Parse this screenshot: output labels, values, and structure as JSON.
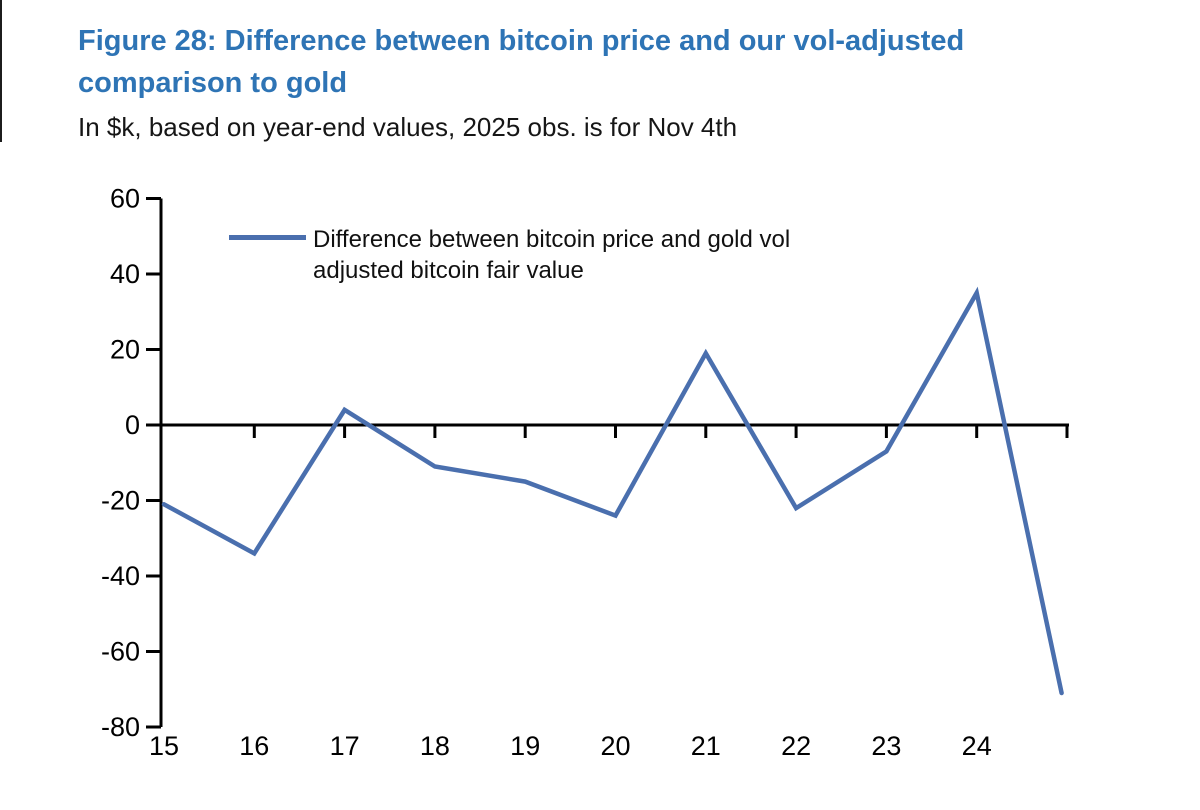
{
  "header": {
    "title_line1": "Figure 28: Difference between bitcoin price and our vol-adjusted",
    "title_line2": "comparison to gold",
    "title_color": "#2E74B5",
    "subtitle": "In $k, based on year-end values, 2025 obs. is for Nov 4th"
  },
  "legend": {
    "line_color": "#4a6fae",
    "label_line1": "Difference between bitcoin price and gold vol",
    "label_line2": "adjusted bitcoin fair value",
    "label_full": "Difference between bitcoin price and gold vol adjusted bitcoin fair value"
  },
  "chart_data": {
    "type": "line",
    "title": "Figure 28: Difference between bitcoin price and our vol-adjusted comparison to gold",
    "subtitle": "In $k, based on year-end values, 2025 obs. is for Nov 4th",
    "xlabel": "",
    "ylabel": "",
    "unit": "$k",
    "grid": false,
    "legend_position": "top-left-inside",
    "ylim": [
      -80,
      60
    ],
    "xlim": [
      15,
      25
    ],
    "y_ticks": [
      60,
      40,
      20,
      0,
      -20,
      -40,
      -60,
      -80
    ],
    "x_tick_labels": [
      "15",
      "16",
      "17",
      "18",
      "19",
      "20",
      "21",
      "22",
      "23",
      "24"
    ],
    "x_tick_label_positions": [
      15,
      16,
      17,
      18,
      19,
      20,
      21,
      22,
      23,
      24
    ],
    "x_tick_marks": [
      16,
      17,
      18,
      19,
      20,
      21,
      22,
      23,
      24,
      25
    ],
    "axis_color": "#000000",
    "series": [
      {
        "name": "Difference between bitcoin price and gold vol adjusted bitcoin fair value",
        "color": "#4a6fae",
        "points": [
          {
            "x": 15,
            "year": "2015",
            "value": -21
          },
          {
            "x": 16,
            "year": "2016",
            "value": -34
          },
          {
            "x": 17,
            "year": "2017",
            "value": 4
          },
          {
            "x": 18,
            "year": "2018",
            "value": -11
          },
          {
            "x": 19,
            "year": "2019",
            "value": -15
          },
          {
            "x": 20,
            "year": "2020",
            "value": -24
          },
          {
            "x": 21,
            "year": "2021",
            "value": 19
          },
          {
            "x": 22,
            "year": "2022",
            "value": -22
          },
          {
            "x": 23,
            "year": "2023",
            "value": -7
          },
          {
            "x": 24,
            "year": "2024",
            "value": 35
          },
          {
            "x": 24.94,
            "year": "2025 (Nov 4)",
            "value": -71
          }
        ]
      }
    ]
  }
}
